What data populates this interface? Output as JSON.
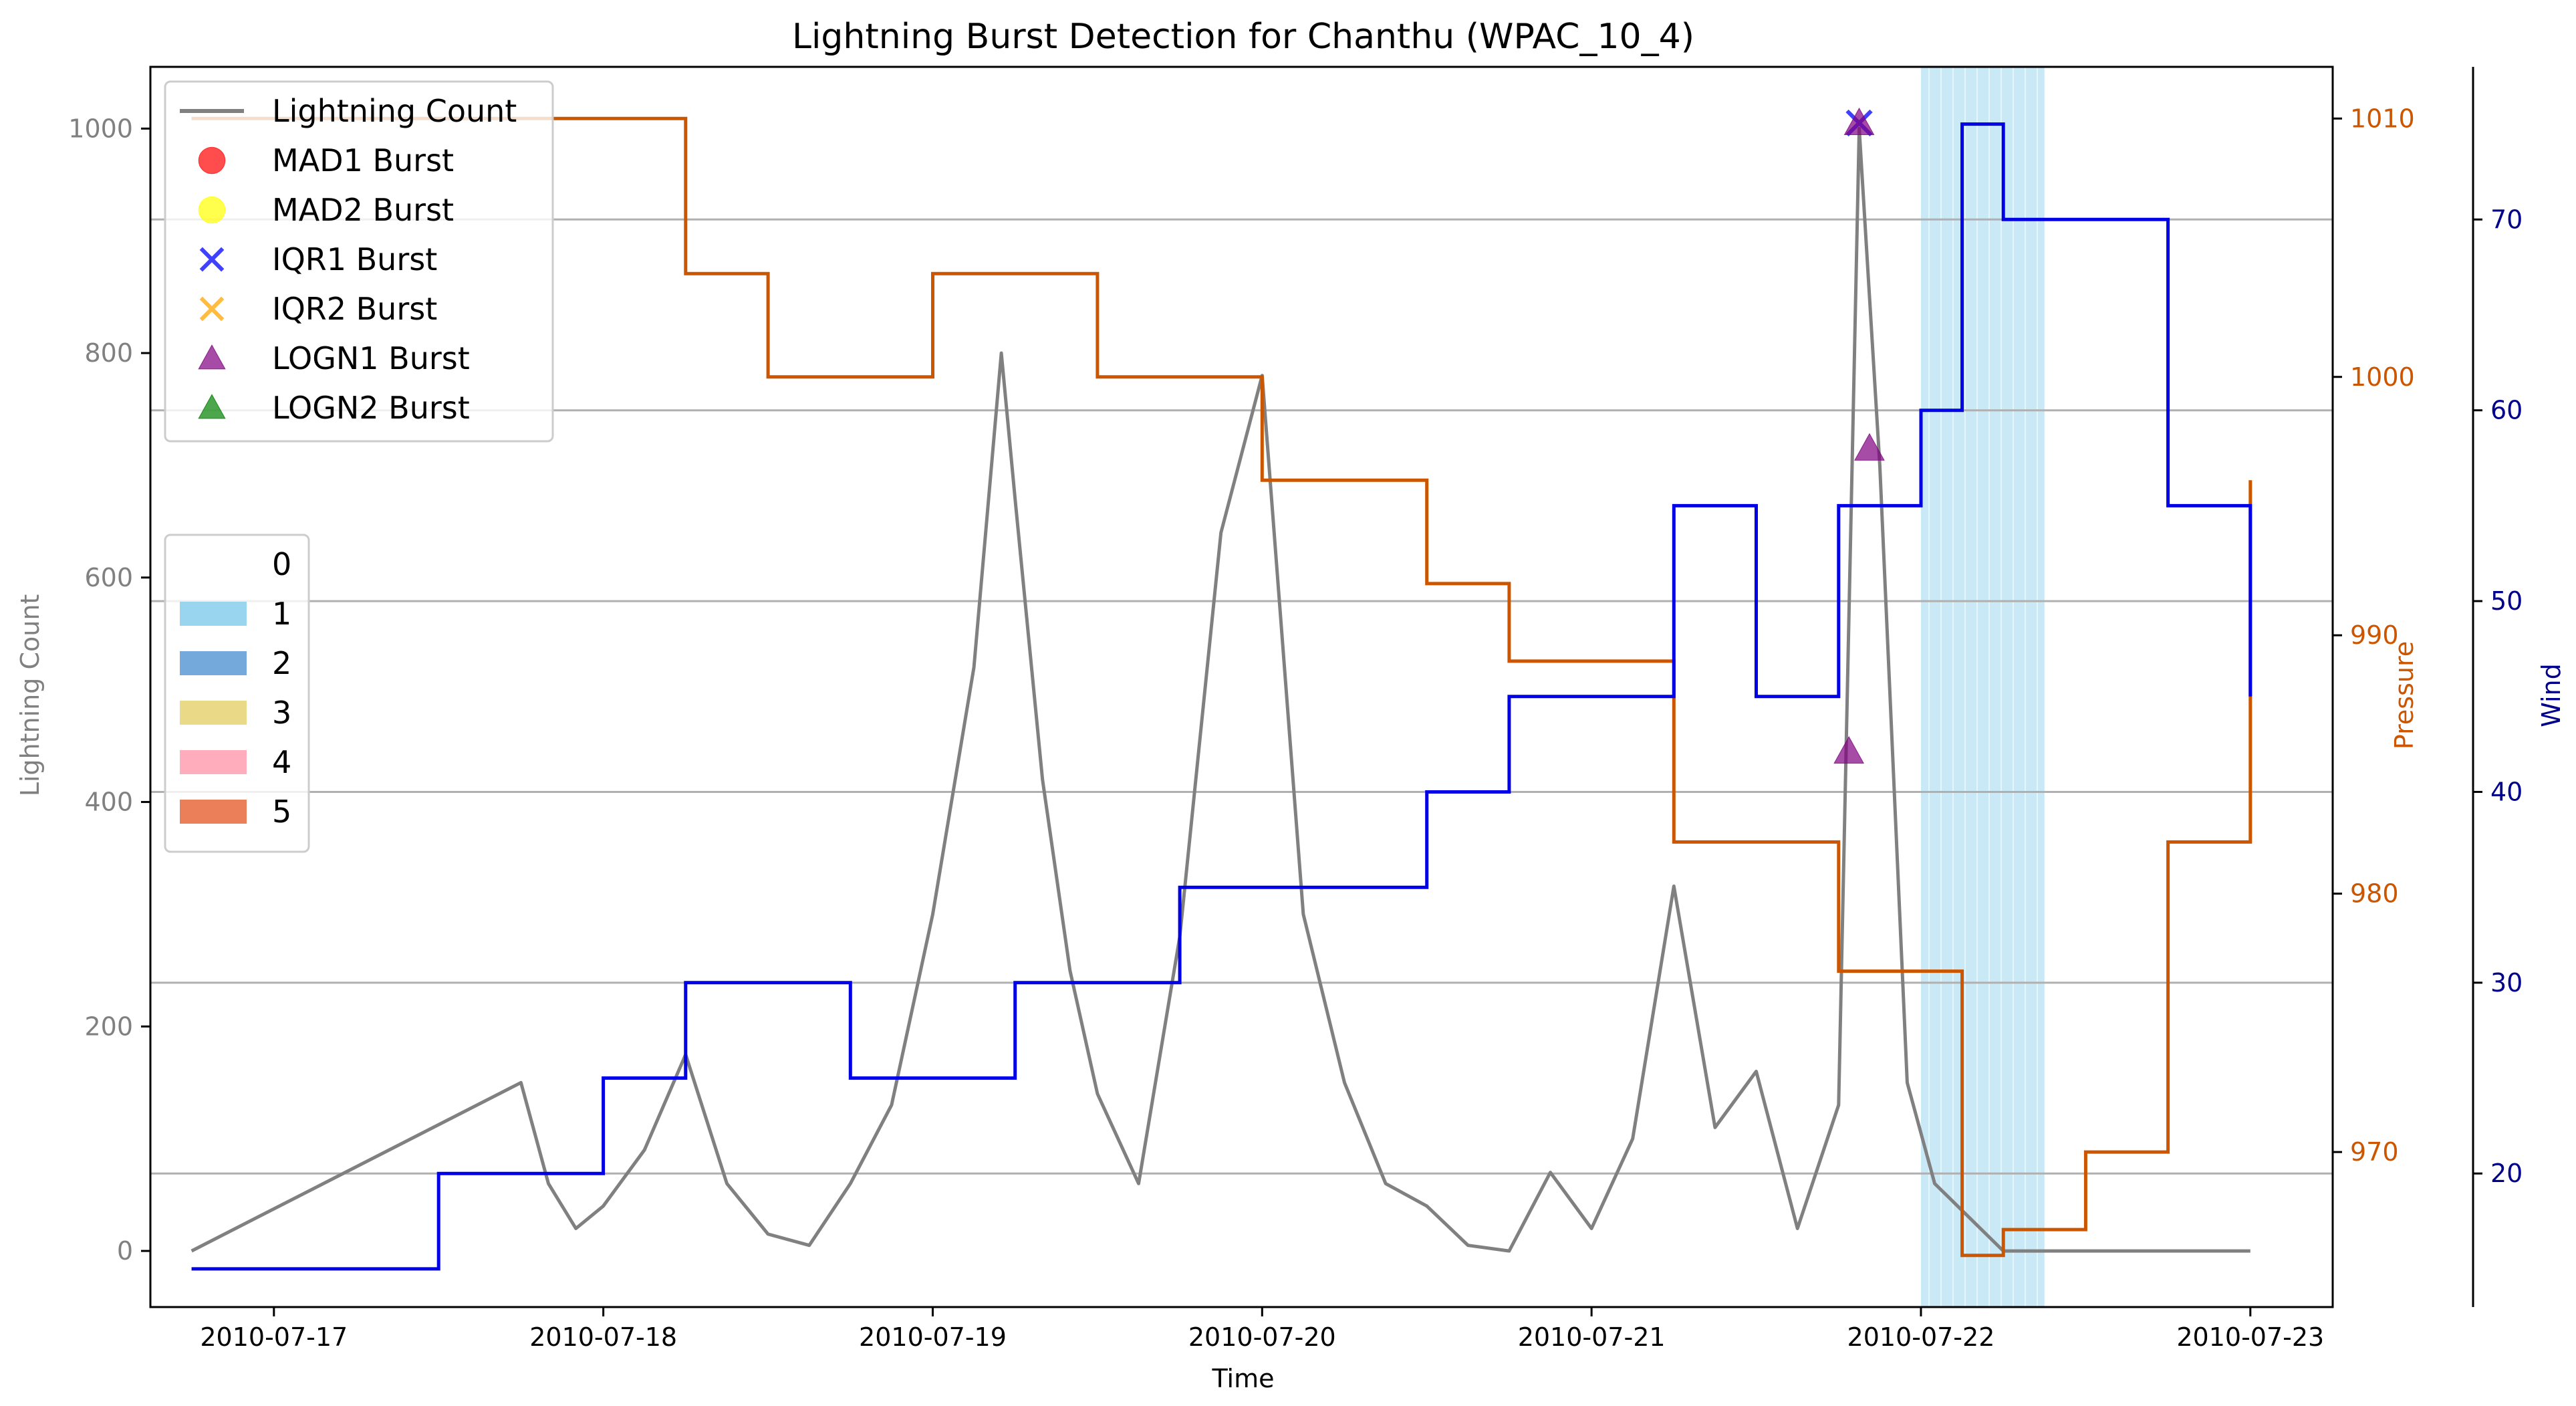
{
  "chart_data": {
    "type": "line",
    "title": "Lightning Burst Detection for Chanthu (WPAC_10_4)",
    "xlabel": "Time",
    "ylabel_left": "Lightning Count",
    "ylabel_pressure": "Pressure",
    "ylabel_wind": "Wind",
    "xlim": [
      "2010-07-16T15:00",
      "2010-07-23T06:00"
    ],
    "ylim_left": [
      -50,
      1055
    ],
    "ylim_pressure": [
      964,
      1012
    ],
    "ylim_wind": [
      13,
      78
    ],
    "x_ticks": [
      "2010-07-17",
      "2010-07-18",
      "2010-07-19",
      "2010-07-20",
      "2010-07-21",
      "2010-07-22",
      "2010-07-23"
    ],
    "left_ticks": [
      0,
      200,
      400,
      600,
      800,
      1000
    ],
    "pressure_ticks": [
      970,
      980,
      990,
      1000,
      1010
    ],
    "wind_ticks": [
      20,
      30,
      40,
      50,
      60,
      70
    ],
    "grid": "horizontal lines at wind ticks",
    "colors": {
      "lightning": "#808080",
      "pressure": "#cc5500",
      "wind": "#0000e6",
      "wind_axis": "#00008b",
      "grid": "#b0b0b0",
      "category1": "#87ceeb",
      "category2": "#5b9bd5",
      "category3": "#e6d472",
      "category4": "#ff9fb0",
      "category5": "#e8693d",
      "mad1": "#ff0000",
      "mad2": "#ffff00",
      "iqr1": "#0000ff",
      "iqr2": "#ffa500",
      "logn1": "#800080",
      "logn2": "#008000"
    },
    "pressure_series": {
      "name": "Pressure",
      "x": [
        "2010-07-16T18:00",
        "2010-07-18T00:00",
        "2010-07-18T06:00",
        "2010-07-18T12:00",
        "2010-07-18T18:00",
        "2010-07-19T00:00",
        "2010-07-19T06:00",
        "2010-07-19T12:00",
        "2010-07-19T18:00",
        "2010-07-20T00:00",
        "2010-07-20T06:00",
        "2010-07-20T12:00",
        "2010-07-20T18:00",
        "2010-07-21T00:00",
        "2010-07-21T06:00",
        "2010-07-21T12:00",
        "2010-07-21T18:00",
        "2010-07-22T00:00",
        "2010-07-22T03:00",
        "2010-07-22T06:00",
        "2010-07-22T12:00",
        "2010-07-22T18:00",
        "2010-07-23T00:00"
      ],
      "values": [
        1010,
        1010,
        1004,
        1000,
        1000,
        1004,
        1004,
        1000,
        1000,
        996,
        996,
        992,
        989,
        989,
        982,
        982,
        977,
        977,
        966,
        967,
        970,
        982,
        996
      ]
    },
    "wind_series": {
      "name": "Wind",
      "x": [
        "2010-07-16T18:00",
        "2010-07-17T06:00",
        "2010-07-17T12:00",
        "2010-07-18T00:00",
        "2010-07-18T06:00",
        "2010-07-18T12:00",
        "2010-07-18T18:00",
        "2010-07-19T00:00",
        "2010-07-19T06:00",
        "2010-07-19T12:00",
        "2010-07-19T18:00",
        "2010-07-20T00:00",
        "2010-07-20T06:00",
        "2010-07-20T12:00",
        "2010-07-20T18:00",
        "2010-07-21T00:00",
        "2010-07-21T06:00",
        "2010-07-21T12:00",
        "2010-07-21T18:00",
        "2010-07-22T00:00",
        "2010-07-22T03:00",
        "2010-07-22T06:00",
        "2010-07-22T12:00",
        "2010-07-22T18:00",
        "2010-07-23T00:00"
      ],
      "values": [
        15,
        15,
        20,
        25,
        30,
        30,
        25,
        25,
        30,
        30,
        35,
        35,
        35,
        40,
        45,
        45,
        55,
        45,
        55,
        60,
        75,
        70,
        70,
        55,
        45
      ]
    },
    "lightning_series": {
      "name": "Lightning Count",
      "x": [
        "2010-07-16T18:00",
        "2010-07-17T18:00",
        "2010-07-17T20:00",
        "2010-07-17T22:00",
        "2010-07-18T00:00",
        "2010-07-18T03:00",
        "2010-07-18T06:00",
        "2010-07-18T09:00",
        "2010-07-18T12:00",
        "2010-07-18T15:00",
        "2010-07-18T18:00",
        "2010-07-18T21:00",
        "2010-07-19T00:00",
        "2010-07-19T03:00",
        "2010-07-19T05:00",
        "2010-07-19T06:00",
        "2010-07-19T08:00",
        "2010-07-19T10:00",
        "2010-07-19T12:00",
        "2010-07-19T15:00",
        "2010-07-19T18:00",
        "2010-07-19T21:00",
        "2010-07-20T00:00",
        "2010-07-20T03:00",
        "2010-07-20T06:00",
        "2010-07-20T09:00",
        "2010-07-20T12:00",
        "2010-07-20T15:00",
        "2010-07-20T18:00",
        "2010-07-20T21:00",
        "2010-07-21T00:00",
        "2010-07-21T03:00",
        "2010-07-21T06:00",
        "2010-07-21T09:00",
        "2010-07-21T12:00",
        "2010-07-21T15:00",
        "2010-07-21T18:00",
        "2010-07-21T19:30",
        "2010-07-21T21:00",
        "2010-07-21T23:00",
        "2010-07-22T01:00",
        "2010-07-22T06:00",
        "2010-07-22T12:00",
        "2010-07-22T18:00",
        "2010-07-23T00:00"
      ],
      "values": [
        0,
        150,
        60,
        20,
        40,
        90,
        175,
        60,
        15,
        5,
        60,
        130,
        300,
        520,
        800,
        670,
        420,
        250,
        140,
        60,
        280,
        640,
        780,
        300,
        150,
        60,
        40,
        5,
        0,
        70,
        20,
        100,
        325,
        110,
        160,
        20,
        130,
        1000,
        700,
        150,
        60,
        0,
        0,
        0,
        0
      ]
    },
    "shaded_category_spans": [
      {
        "category": "1",
        "x0": "2010-07-22T00:00",
        "x1": "2010-07-22T09:00"
      }
    ],
    "burst_markers": [
      {
        "series": "IQR1 Burst",
        "x": "2010-07-21T19:30",
        "y": 1005
      },
      {
        "series": "LOGN1 Burst",
        "x": "2010-07-21T19:30",
        "y": 1005
      },
      {
        "series": "LOGN1 Burst",
        "x": "2010-07-21T20:15",
        "y": 715
      },
      {
        "series": "LOGN1 Burst",
        "x": "2010-07-21T18:45",
        "y": 445
      }
    ],
    "legend_bursts": {
      "placement": "upper-left",
      "entries": [
        {
          "label": "Lightning Count",
          "marker": "line",
          "color": "#808080"
        },
        {
          "label": "MAD1 Burst",
          "marker": "circle",
          "color": "#ff0000"
        },
        {
          "label": "MAD2 Burst",
          "marker": "circle",
          "color": "#ffff00"
        },
        {
          "label": "IQR1 Burst",
          "marker": "x",
          "color": "#0000ff"
        },
        {
          "label": "IQR2 Burst",
          "marker": "x",
          "color": "#ffa500"
        },
        {
          "label": "LOGN1 Burst",
          "marker": "triangle",
          "color": "#800080"
        },
        {
          "label": "LOGN2 Burst",
          "marker": "triangle",
          "color": "#008000"
        }
      ]
    },
    "legend_categories": {
      "placement": "center-left",
      "entries": [
        {
          "label": "0",
          "color": "#ffffff"
        },
        {
          "label": "1",
          "color": "#87ceeb"
        },
        {
          "label": "2",
          "color": "#5b9bd5"
        },
        {
          "label": "3",
          "color": "#e6d472"
        },
        {
          "label": "4",
          "color": "#ff9fb0"
        },
        {
          "label": "5",
          "color": "#e8693d"
        }
      ]
    }
  }
}
